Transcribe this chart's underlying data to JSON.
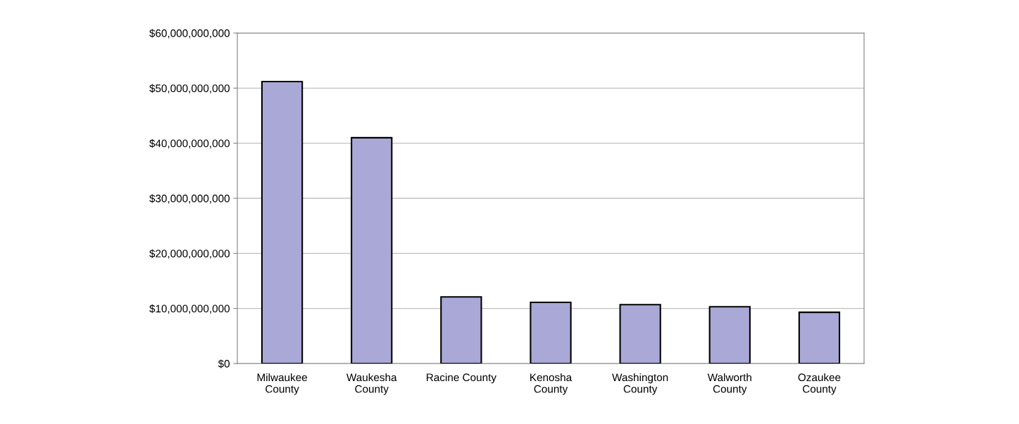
{
  "chart_data": {
    "type": "bar",
    "categories": [
      "Milwaukee\nCounty",
      "Waukesha\nCounty",
      "Racine County",
      "Kenosha\nCounty",
      "Washington\nCounty",
      "Walworth\nCounty",
      "Ozaukee\nCounty"
    ],
    "values": [
      51200000000,
      41000000000,
      12100000000,
      11100000000,
      10700000000,
      10300000000,
      9300000000
    ],
    "color": "#aaa8d6",
    "ylim": [
      0,
      60000000000
    ],
    "yticks": [
      {
        "value": 0,
        "label": "$0"
      },
      {
        "value": 10000000000,
        "label": "$10,000,000,000"
      },
      {
        "value": 20000000000,
        "label": "$20,000,000,000"
      },
      {
        "value": 30000000000,
        "label": "$30,000,000,000"
      },
      {
        "value": 40000000000,
        "label": "$40,000,000,000"
      },
      {
        "value": 50000000000,
        "label": "$50,000,000,000"
      },
      {
        "value": 60000000000,
        "label": "$60,000,000,000"
      }
    ],
    "grid": "y"
  }
}
